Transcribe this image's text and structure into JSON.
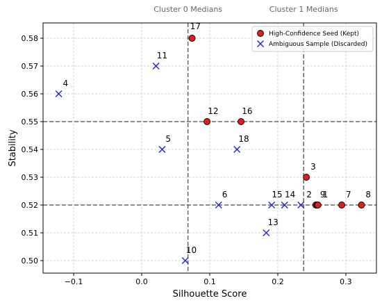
{
  "chart_data": {
    "type": "scatter",
    "xlabel": "Silhouette Score",
    "ylabel": "Stability",
    "xlim": [
      -0.145,
      0.345
    ],
    "ylim": [
      0.4955,
      0.5855
    ],
    "x_ticks": [
      {
        "v": -0.1,
        "label": "−0.1"
      },
      {
        "v": 0.0,
        "label": "0.0"
      },
      {
        "v": 0.1,
        "label": "0.1"
      },
      {
        "v": 0.2,
        "label": "0.2"
      },
      {
        "v": 0.3,
        "label": "0.3"
      }
    ],
    "y_ticks": [
      {
        "v": 0.5,
        "label": "0.50"
      },
      {
        "v": 0.51,
        "label": "0.51"
      },
      {
        "v": 0.52,
        "label": "0.52"
      },
      {
        "v": 0.53,
        "label": "0.53"
      },
      {
        "v": 0.54,
        "label": "0.54"
      },
      {
        "v": 0.55,
        "label": "0.55"
      },
      {
        "v": 0.56,
        "label": "0.56"
      },
      {
        "v": 0.57,
        "label": "0.57"
      },
      {
        "v": 0.58,
        "label": "0.58"
      }
    ],
    "grid": true,
    "legend": "top-right",
    "medians": [
      {
        "name": "Cluster 0 Medians",
        "x": 0.068,
        "y": 0.55
      },
      {
        "name": "Cluster 1 Medians",
        "x": 0.238,
        "y": 0.52
      }
    ],
    "series": [
      {
        "name": "High-Confidence Seed (Kept)",
        "marker": "circle",
        "color": "#dd1f1f",
        "edge": "#000000",
        "points": [
          {
            "id": "17",
            "x": 0.074,
            "y": 0.58
          },
          {
            "id": "12",
            "x": 0.096,
            "y": 0.55
          },
          {
            "id": "16",
            "x": 0.146,
            "y": 0.55
          },
          {
            "id": "3",
            "x": 0.242,
            "y": 0.53
          },
          {
            "id": "2",
            "x": 0.256,
            "y": 0.52
          },
          {
            "id": "9",
            "x": 0.258,
            "y": 0.52
          },
          {
            "id": "1",
            "x": 0.259,
            "y": 0.52
          },
          {
            "id": "7",
            "x": 0.294,
            "y": 0.52
          },
          {
            "id": "8",
            "x": 0.323,
            "y": 0.52
          }
        ]
      },
      {
        "name": "Ambiguous Sample (Discarded)",
        "marker": "x",
        "color": "#1f22d8",
        "points": [
          {
            "id": "4",
            "x": -0.122,
            "y": 0.56
          },
          {
            "id": "11",
            "x": 0.021,
            "y": 0.57
          },
          {
            "id": "5",
            "x": 0.03,
            "y": 0.54
          },
          {
            "id": "18",
            "x": 0.14,
            "y": 0.54
          },
          {
            "id": "6",
            "x": 0.113,
            "y": 0.52
          },
          {
            "id": "15",
            "x": 0.191,
            "y": 0.52
          },
          {
            "id": "14",
            "x": 0.21,
            "y": 0.52
          },
          {
            "id": "13",
            "x": 0.234,
            "y": 0.52
          },
          {
            "id": "10",
            "x": 0.064,
            "y": 0.5
          },
          {
            "id": "13b",
            "x": 0.183,
            "y": 0.51
          }
        ]
      }
    ],
    "labels": [
      {
        "text": "17",
        "x": 0.079,
        "y": 0.5833
      },
      {
        "text": "11",
        "x": 0.03,
        "y": 0.5728
      },
      {
        "text": "4",
        "x": -0.112,
        "y": 0.5628
      },
      {
        "text": "12",
        "x": 0.105,
        "y": 0.5528
      },
      {
        "text": "16",
        "x": 0.155,
        "y": 0.5528
      },
      {
        "text": "5",
        "x": 0.039,
        "y": 0.5428
      },
      {
        "text": "18",
        "x": 0.15,
        "y": 0.5428
      },
      {
        "text": "3",
        "x": 0.252,
        "y": 0.5328
      },
      {
        "text": "6",
        "x": 0.122,
        "y": 0.5228
      },
      {
        "text": "15",
        "x": 0.199,
        "y": 0.5228
      },
      {
        "text": "14",
        "x": 0.218,
        "y": 0.5228
      },
      {
        "text": "2",
        "x": 0.246,
        "y": 0.5228
      },
      {
        "text": "9",
        "x": 0.266,
        "y": 0.5228
      },
      {
        "text": "1",
        "x": 0.27,
        "y": 0.5228
      },
      {
        "text": "7",
        "x": 0.304,
        "y": 0.5228
      },
      {
        "text": "8",
        "x": 0.333,
        "y": 0.5228
      },
      {
        "text": "13",
        "x": 0.193,
        "y": 0.5128
      },
      {
        "text": "10",
        "x": 0.073,
        "y": 0.5028
      }
    ]
  }
}
